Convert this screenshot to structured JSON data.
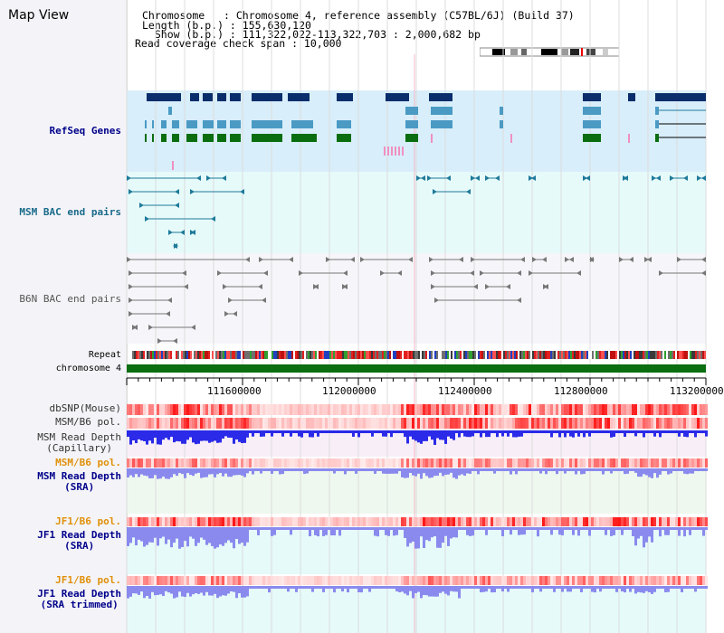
{
  "header": {
    "map_title": "Map View",
    "chromosome_line": "Chromosome   : Chromosome 4, reference assembly (C57BL/6J) (Build 37)",
    "length_line": "Length (b.p.) : 155,630,120",
    "show_line": "  Show (b.p.) : 111,322,022-113,322,703 : 2,000,682 bp",
    "coverage_line": "Read coverage check span : 10,000"
  },
  "tracks": {
    "refseq": "RefSeq Genes",
    "msm_bac": "MSM BAC end pairs",
    "b6n_bac": "B6N BAC end pairs",
    "repeat": "Repeat",
    "chromosome": "chromosome 4",
    "dbsnp": "dbSNP(Mouse)",
    "msm_pol": "MSM/B6 pol.",
    "msm_depth_cap": "MSM Read Depth\n(Capillary)",
    "msm_pol2": "MSM/B6 pol.",
    "msm_depth_sra": "MSM Read Depth\n(SRA)",
    "jf1_pol": "JF1/B6 pol.",
    "jf1_depth_sra": "JF1 Read Depth\n(SRA)",
    "jf1_pol2": "JF1/B6 pol.",
    "jf1_depth_trim": "JF1 Read Depth\n(SRA trimmed)"
  },
  "axis": {
    "ticks": [
      "111600000",
      "112000000",
      "112400000",
      "112800000",
      "113200000"
    ]
  },
  "colors": {
    "refseq_bg": "#d8eefa",
    "msm_bg": "#e6fafa",
    "b6n_bg": "#f6f6fa",
    "gene_dark": "#0a2d6b",
    "gene_mid": "#4a9ac4",
    "gene_green": "#0a6e10",
    "bac_teal": "#1e7a9a",
    "chrom_green": "#0b6e10",
    "depth_blue": "#2a2ae8",
    "depth_light": "#8a8aee",
    "label_blue": "#00008b",
    "label_orange": "#e0900a",
    "label_teal": "#1a6a8a"
  }
}
